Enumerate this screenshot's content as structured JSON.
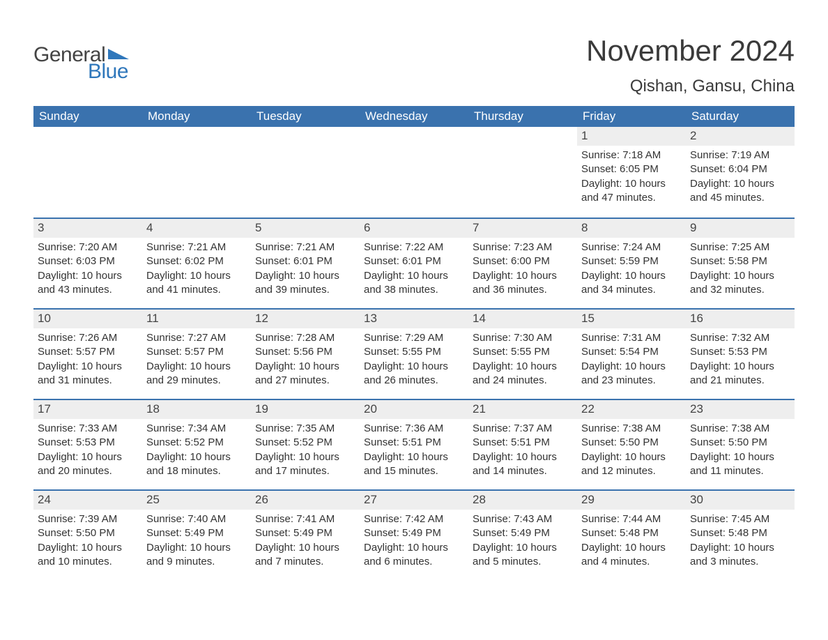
{
  "brand": {
    "name_left": "General",
    "name_right": "Blue",
    "accent_color": "#2f77bb"
  },
  "title": "November 2024",
  "location": "Qishan, Gansu, China",
  "colors": {
    "header_bg": "#3a72ae",
    "header_text": "#ffffff",
    "week_divider": "#3a72ae",
    "daynum_bg": "#eeeeee",
    "text": "#333333",
    "background": "#ffffff"
  },
  "days_of_week": [
    "Sunday",
    "Monday",
    "Tuesday",
    "Wednesday",
    "Thursday",
    "Friday",
    "Saturday"
  ],
  "labels": {
    "sunrise": "Sunrise",
    "sunset": "Sunset",
    "daylight": "Daylight"
  },
  "blank_leading": 5,
  "days": [
    {
      "n": 1,
      "sunrise": "7:18 AM",
      "sunset": "6:05 PM",
      "daylight": "10 hours and 47 minutes."
    },
    {
      "n": 2,
      "sunrise": "7:19 AM",
      "sunset": "6:04 PM",
      "daylight": "10 hours and 45 minutes."
    },
    {
      "n": 3,
      "sunrise": "7:20 AM",
      "sunset": "6:03 PM",
      "daylight": "10 hours and 43 minutes."
    },
    {
      "n": 4,
      "sunrise": "7:21 AM",
      "sunset": "6:02 PM",
      "daylight": "10 hours and 41 minutes."
    },
    {
      "n": 5,
      "sunrise": "7:21 AM",
      "sunset": "6:01 PM",
      "daylight": "10 hours and 39 minutes."
    },
    {
      "n": 6,
      "sunrise": "7:22 AM",
      "sunset": "6:01 PM",
      "daylight": "10 hours and 38 minutes."
    },
    {
      "n": 7,
      "sunrise": "7:23 AM",
      "sunset": "6:00 PM",
      "daylight": "10 hours and 36 minutes."
    },
    {
      "n": 8,
      "sunrise": "7:24 AM",
      "sunset": "5:59 PM",
      "daylight": "10 hours and 34 minutes."
    },
    {
      "n": 9,
      "sunrise": "7:25 AM",
      "sunset": "5:58 PM",
      "daylight": "10 hours and 32 minutes."
    },
    {
      "n": 10,
      "sunrise": "7:26 AM",
      "sunset": "5:57 PM",
      "daylight": "10 hours and 31 minutes."
    },
    {
      "n": 11,
      "sunrise": "7:27 AM",
      "sunset": "5:57 PM",
      "daylight": "10 hours and 29 minutes."
    },
    {
      "n": 12,
      "sunrise": "7:28 AM",
      "sunset": "5:56 PM",
      "daylight": "10 hours and 27 minutes."
    },
    {
      "n": 13,
      "sunrise": "7:29 AM",
      "sunset": "5:55 PM",
      "daylight": "10 hours and 26 minutes."
    },
    {
      "n": 14,
      "sunrise": "7:30 AM",
      "sunset": "5:55 PM",
      "daylight": "10 hours and 24 minutes."
    },
    {
      "n": 15,
      "sunrise": "7:31 AM",
      "sunset": "5:54 PM",
      "daylight": "10 hours and 23 minutes."
    },
    {
      "n": 16,
      "sunrise": "7:32 AM",
      "sunset": "5:53 PM",
      "daylight": "10 hours and 21 minutes."
    },
    {
      "n": 17,
      "sunrise": "7:33 AM",
      "sunset": "5:53 PM",
      "daylight": "10 hours and 20 minutes."
    },
    {
      "n": 18,
      "sunrise": "7:34 AM",
      "sunset": "5:52 PM",
      "daylight": "10 hours and 18 minutes."
    },
    {
      "n": 19,
      "sunrise": "7:35 AM",
      "sunset": "5:52 PM",
      "daylight": "10 hours and 17 minutes."
    },
    {
      "n": 20,
      "sunrise": "7:36 AM",
      "sunset": "5:51 PM",
      "daylight": "10 hours and 15 minutes."
    },
    {
      "n": 21,
      "sunrise": "7:37 AM",
      "sunset": "5:51 PM",
      "daylight": "10 hours and 14 minutes."
    },
    {
      "n": 22,
      "sunrise": "7:38 AM",
      "sunset": "5:50 PM",
      "daylight": "10 hours and 12 minutes."
    },
    {
      "n": 23,
      "sunrise": "7:38 AM",
      "sunset": "5:50 PM",
      "daylight": "10 hours and 11 minutes."
    },
    {
      "n": 24,
      "sunrise": "7:39 AM",
      "sunset": "5:50 PM",
      "daylight": "10 hours and 10 minutes."
    },
    {
      "n": 25,
      "sunrise": "7:40 AM",
      "sunset": "5:49 PM",
      "daylight": "10 hours and 9 minutes."
    },
    {
      "n": 26,
      "sunrise": "7:41 AM",
      "sunset": "5:49 PM",
      "daylight": "10 hours and 7 minutes."
    },
    {
      "n": 27,
      "sunrise": "7:42 AM",
      "sunset": "5:49 PM",
      "daylight": "10 hours and 6 minutes."
    },
    {
      "n": 28,
      "sunrise": "7:43 AM",
      "sunset": "5:49 PM",
      "daylight": "10 hours and 5 minutes."
    },
    {
      "n": 29,
      "sunrise": "7:44 AM",
      "sunset": "5:48 PM",
      "daylight": "10 hours and 4 minutes."
    },
    {
      "n": 30,
      "sunrise": "7:45 AM",
      "sunset": "5:48 PM",
      "daylight": "10 hours and 3 minutes."
    }
  ]
}
